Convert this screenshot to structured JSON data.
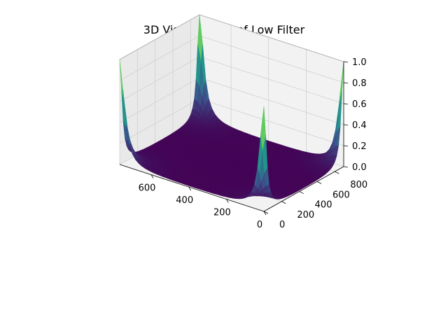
{
  "chart_data": {
    "type": "surface3d",
    "title": "3D Visualization of Low Filter",
    "xlabel": "",
    "ylabel": "",
    "zlabel": "",
    "x_ticks": [
      "0",
      "200",
      "400",
      "600"
    ],
    "y_ticks": [
      "0",
      "200",
      "400",
      "600",
      "800"
    ],
    "z_ticks": [
      "0.0",
      "0.2",
      "0.4",
      "0.6",
      "0.8",
      "1.0"
    ],
    "xlim": [
      0,
      768
    ],
    "ylim": [
      0,
      900
    ],
    "zlim": [
      0,
      1
    ],
    "colormap": "viridis",
    "grid": true,
    "peaks": [
      {
        "x": 0,
        "y": 0,
        "z": 1.0
      },
      {
        "x": 768,
        "y": 0,
        "z": 1.0
      },
      {
        "x": 0,
        "y": 900,
        "z": 1.0
      },
      {
        "x": 768,
        "y": 900,
        "z": 1.0
      }
    ],
    "pane_color": "#f2f2f2",
    "surface_base_color": "#440154"
  }
}
